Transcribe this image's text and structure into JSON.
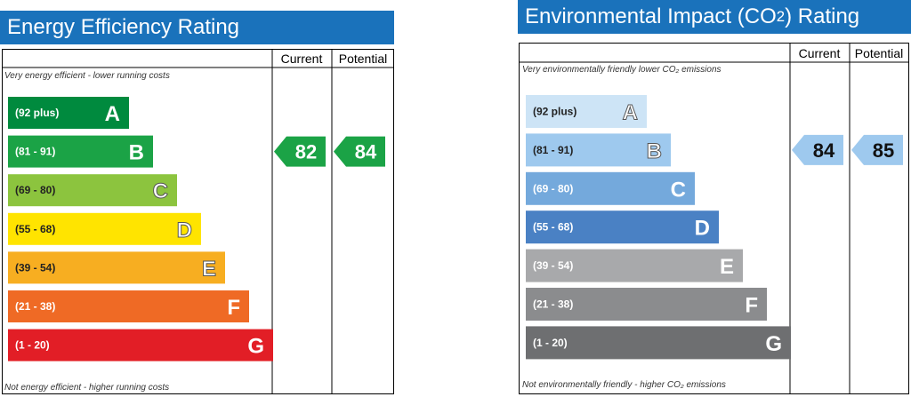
{
  "charts": [
    {
      "id": "ee",
      "title": "Energy Efficiency Rating",
      "column_headers": {
        "current": "Current",
        "potential": "Potential"
      },
      "top_note": "Very energy efficient - lower running costs",
      "bottom_note": "Not energy efficient - higher running costs",
      "bands": [
        {
          "range": "(92 plus)",
          "letter": "A",
          "color": "#008a3e"
        },
        {
          "range": "(81 - 91)",
          "letter": "B",
          "color": "#1ba346"
        },
        {
          "range": "(69 - 80)",
          "letter": "C",
          "color": "#8cc43e"
        },
        {
          "range": "(55 - 68)",
          "letter": "D",
          "color": "#ffe400"
        },
        {
          "range": "(39 - 54)",
          "letter": "E",
          "color": "#f7ae21"
        },
        {
          "range": "(21 - 38)",
          "letter": "F",
          "color": "#ef6a25"
        },
        {
          "range": "(1 - 20)",
          "letter": "G",
          "color": "#e21e26"
        }
      ],
      "current": {
        "value": 82,
        "band": "B",
        "color": "#1ba346"
      },
      "potential": {
        "value": 84,
        "band": "B",
        "color": "#1ba346"
      }
    },
    {
      "id": "ei",
      "title_main": "Environmental Impact (CO",
      "title_sub": "2",
      "title_end": ") Rating",
      "column_headers": {
        "current": "Current",
        "potential": "Potential"
      },
      "top_note": "Very environmentally friendly   lower CO₂ emissions",
      "bottom_note": "Not environmentally friendly - higher CO₂ emissions",
      "bands": [
        {
          "range": "(92 plus)",
          "letter": "A",
          "color": "#cde4f6"
        },
        {
          "range": "(81 - 91)",
          "letter": "B",
          "color": "#9ec9ee"
        },
        {
          "range": "(69 - 80)",
          "letter": "C",
          "color": "#74a9dc"
        },
        {
          "range": "(55 - 68)",
          "letter": "D",
          "color": "#4a81c4"
        },
        {
          "range": "(39 - 54)",
          "letter": "E",
          "color": "#a8a9ab"
        },
        {
          "range": "(21 - 38)",
          "letter": "F",
          "color": "#8b8c8e"
        },
        {
          "range": "(1 - 20)",
          "letter": "G",
          "color": "#6e6f71"
        }
      ],
      "current": {
        "value": 84,
        "band": "B",
        "color": "#9ec9ee"
      },
      "potential": {
        "value": 85,
        "band": "B",
        "color": "#9ec9ee"
      }
    }
  ]
}
